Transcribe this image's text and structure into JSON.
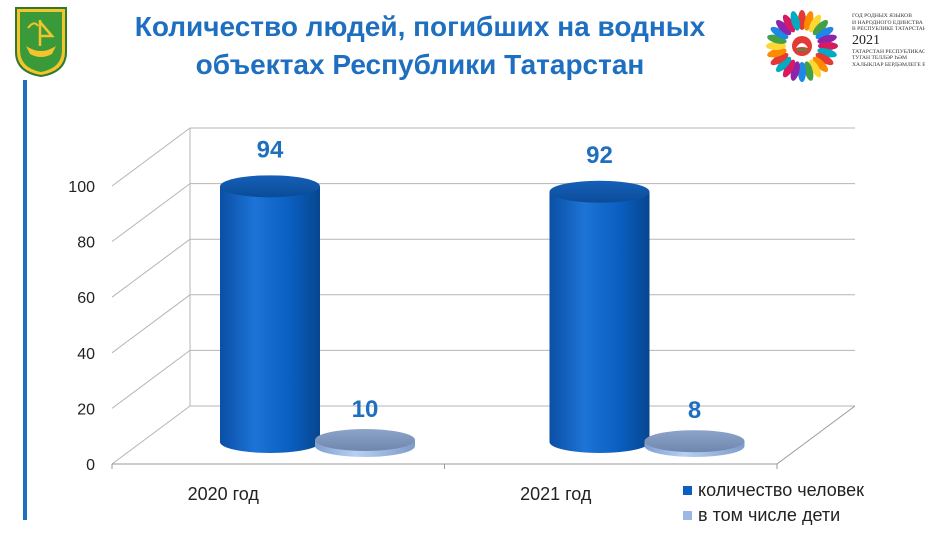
{
  "header": {
    "title": "Количество людей, погибших на водных объектах Республики Татарстан",
    "emblem_lines": [
      "ГОД РОДНЫХ ЯЗЫКОВ",
      "И НАРОДНОГО ЕДИНСТВА",
      "В РЕСПУБЛИКЕ ТАТАРСТАН",
      "ТАТАРСТАН РЕСПУБЛИКАСЫНДА",
      "ТУГАН ТЕЛЛӘР ҺӘМ",
      "ХАЛЫКЛАР БЕРДӘМЛЕГЕ ЕЛЫ"
    ],
    "emblem_year": "2021"
  },
  "colors": {
    "accent": "#1f6fc0",
    "series1": "#0a5fc1",
    "series2": "#9ab8e6"
  },
  "chart_data": {
    "type": "bar",
    "categories": [
      "2020 год",
      "2021 год"
    ],
    "series": [
      {
        "name": "количество человек",
        "values": [
          94,
          92
        ]
      },
      {
        "name": "в том числе дети",
        "values": [
          10,
          8
        ]
      }
    ],
    "y_ticks": [
      "0",
      "20",
      "40",
      "60",
      "80",
      "100"
    ],
    "ylim": [
      0,
      100
    ],
    "grid": true,
    "legend_position": "bottom-right",
    "style": "3d-cylinder"
  }
}
